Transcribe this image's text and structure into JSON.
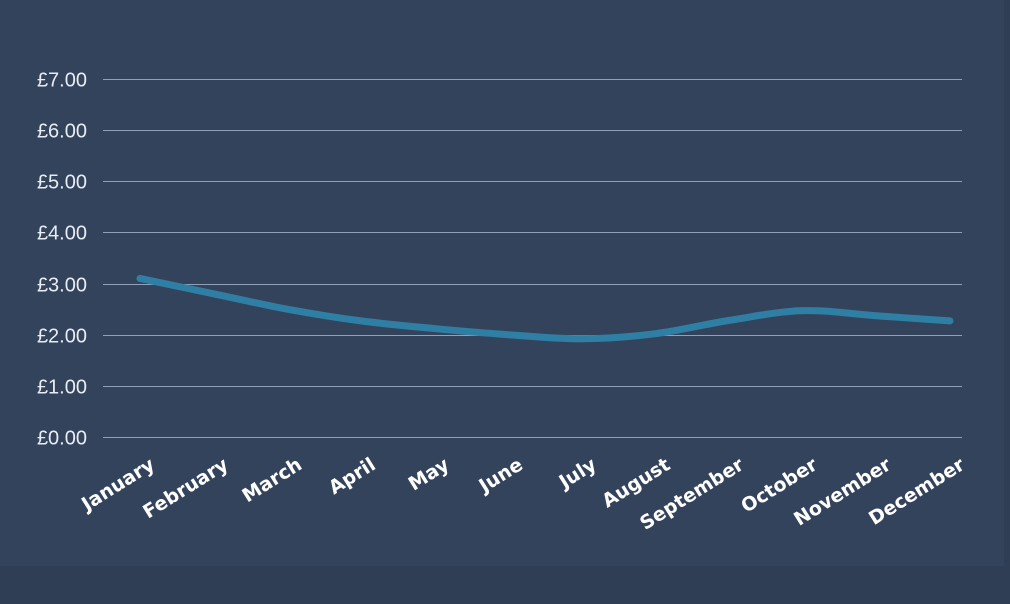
{
  "chart_data": {
    "type": "line",
    "categories": [
      "January",
      "February",
      "March",
      "April",
      "May",
      "June",
      "July",
      "August",
      "September",
      "October",
      "November",
      "December"
    ],
    "series": [
      {
        "values": [
          3.1,
          2.8,
          2.5,
          2.27,
          2.12,
          2.0,
          1.92,
          2.02,
          2.28,
          2.47,
          2.37,
          2.27
        ]
      }
    ],
    "y_ticks": [
      "£0.00",
      "£1.00",
      "£2.00",
      "£3.00",
      "£4.00",
      "£5.00",
      "£6.00",
      "£7.00"
    ],
    "ylim": [
      0,
      7
    ],
    "grid": true,
    "title": "",
    "xlabel": "",
    "ylabel": "",
    "colors": {
      "background": "#34435c",
      "outer_background": "#2f3d55",
      "line": "#2f7fa4",
      "gridline": "#8fa0b7",
      "text": "#ffffff"
    }
  }
}
